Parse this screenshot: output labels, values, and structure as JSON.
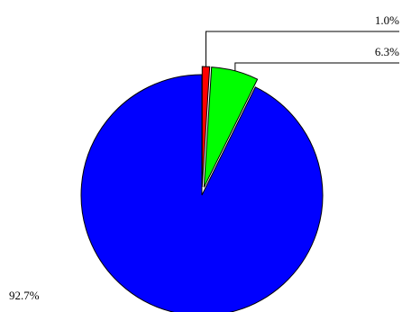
{
  "chart_data": {
    "type": "pie",
    "title": "",
    "legend": "none",
    "slices": [
      {
        "label": "1.0%",
        "value": 1.0,
        "color": "#ff0000",
        "exploded": true
      },
      {
        "label": "6.3%",
        "value": 6.3,
        "color": "#00ff00",
        "exploded": true
      },
      {
        "label": "92.7%",
        "value": 92.7,
        "color": "#0000ff",
        "exploded": false
      }
    ]
  }
}
